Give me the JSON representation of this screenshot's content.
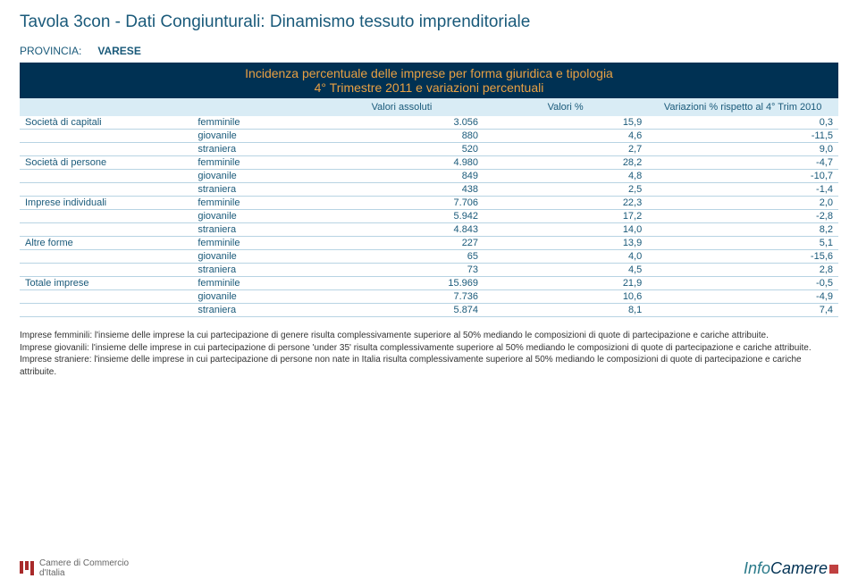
{
  "title": "Tavola 3con - Dati Congiunturali: Dinamismo tessuto imprenditoriale",
  "province": {
    "label": "PROVINCIA:",
    "value": "VARESE"
  },
  "subhead": {
    "line1": "Incidenza percentuale delle imprese per forma giuridica e tipologia",
    "line2": "4° Trimestre 2011 e variazioni percentuali"
  },
  "headers": {
    "col1": "",
    "col2": "",
    "col3": "Valori assoluti",
    "col4": "Valori %",
    "col5": "Variazioni % rispetto al 4° Trim 2010"
  },
  "rows": [
    {
      "cat": "Società di capitali",
      "sub": "femminile",
      "v1": "3.056",
      "v2": "15,9",
      "v3": "0,3"
    },
    {
      "cat": "",
      "sub": "giovanile",
      "v1": "880",
      "v2": "4,6",
      "v3": "-11,5"
    },
    {
      "cat": "",
      "sub": "straniera",
      "v1": "520",
      "v2": "2,7",
      "v3": "9,0"
    },
    {
      "cat": "Società di persone",
      "sub": "femminile",
      "v1": "4.980",
      "v2": "28,2",
      "v3": "-4,7"
    },
    {
      "cat": "",
      "sub": "giovanile",
      "v1": "849",
      "v2": "4,8",
      "v3": "-10,7"
    },
    {
      "cat": "",
      "sub": "straniera",
      "v1": "438",
      "v2": "2,5",
      "v3": "-1,4"
    },
    {
      "cat": "Imprese individuali",
      "sub": "femminile",
      "v1": "7.706",
      "v2": "22,3",
      "v3": "2,0"
    },
    {
      "cat": "",
      "sub": "giovanile",
      "v1": "5.942",
      "v2": "17,2",
      "v3": "-2,8"
    },
    {
      "cat": "",
      "sub": "straniera",
      "v1": "4.843",
      "v2": "14,0",
      "v3": "8,2"
    },
    {
      "cat": "Altre forme",
      "sub": "femminile",
      "v1": "227",
      "v2": "13,9",
      "v3": "5,1"
    },
    {
      "cat": "",
      "sub": "giovanile",
      "v1": "65",
      "v2": "4,0",
      "v3": "-15,6"
    },
    {
      "cat": "",
      "sub": "straniera",
      "v1": "73",
      "v2": "4,5",
      "v3": "2,8"
    },
    {
      "cat": "Totale imprese",
      "sub": "femminile",
      "v1": "15.969",
      "v2": "21,9",
      "v3": "-0,5"
    },
    {
      "cat": "",
      "sub": "giovanile",
      "v1": "7.736",
      "v2": "10,6",
      "v3": "-4,9"
    },
    {
      "cat": "",
      "sub": "straniera",
      "v1": "5.874",
      "v2": "8,1",
      "v3": "7,4"
    }
  ],
  "footnotes": [
    "Imprese femminili: l'insieme delle imprese la cui partecipazione di genere risulta complessivamente superiore al 50% mediando le composizioni di quote di partecipazione e cariche attribuite.",
    "Imprese giovanili: l'insieme delle imprese in cui partecipazione di persone 'under 35' risulta complessivamente superiore al 50% mediando le composizioni di quote di partecipazione e cariche attribuite.",
    "Imprese straniere: l'insieme delle imprese in cui partecipazione di persone non nate in Italia risulta complessivamente superiore al 50% mediando le composizioni di quote di partecipazione e cariche attribuite."
  ],
  "logos": {
    "left_line1": "Camere di Commercio",
    "left_line2": "d'Italia",
    "right_info": "Info",
    "right_camere": "Camere"
  }
}
